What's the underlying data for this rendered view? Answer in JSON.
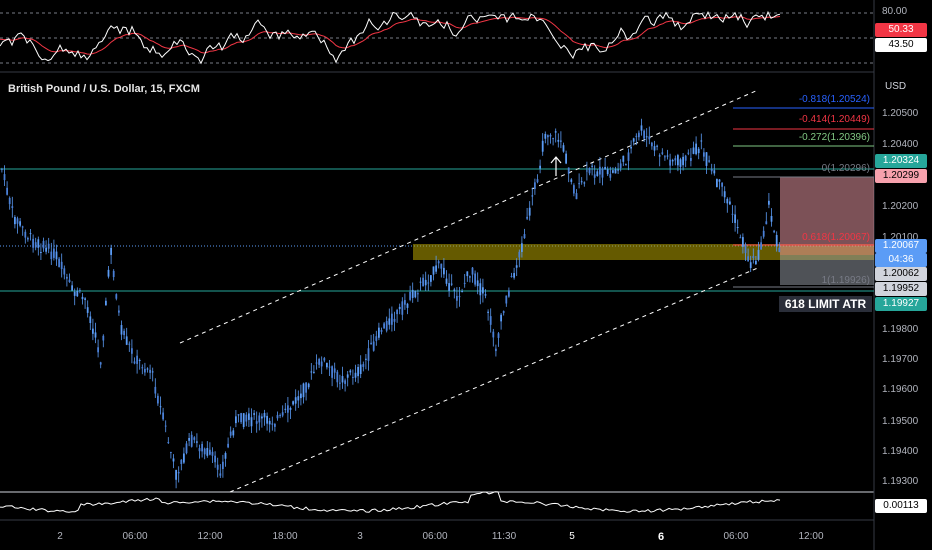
{
  "chart": {
    "title": "British Pound / U.S. Dollar, 15, FXCM",
    "currency": "USD",
    "annotation": "618 LIMIT ATR"
  },
  "oscillator": {
    "ticks": [
      "80.00"
    ],
    "value_tags": [
      {
        "text": "50.33",
        "color": "#f23645",
        "text_color": "#ffffff"
      },
      {
        "text": "43.50",
        "color": "#ffffff",
        "text_color": "#000000"
      }
    ]
  },
  "price_axis": {
    "ticks": [
      "1.20500",
      "1.20400",
      "1.20200",
      "1.20100",
      "1.19800",
      "1.19700",
      "1.19600",
      "1.19500",
      "1.19400",
      "1.19300"
    ]
  },
  "price_tags": [
    {
      "text": "1.20324",
      "bg": "#26a69a",
      "fg": "#ffffff"
    },
    {
      "text": "1.20299",
      "bg": "#f7a1ad",
      "fg": "#000000"
    },
    {
      "text": "1.20067",
      "bg": "#5b9cf6",
      "fg": "#ffffff"
    },
    {
      "text": "04:36",
      "bg": "#5b9cf6",
      "fg": "#ffffff"
    },
    {
      "text": "1.20062",
      "bg": "#d1d4dc",
      "fg": "#000000"
    },
    {
      "text": "1.19952",
      "bg": "#d1d4dc",
      "fg": "#000000"
    },
    {
      "text": "1.19927",
      "bg": "#26a69a",
      "fg": "#ffffff"
    }
  ],
  "fib_levels": [
    {
      "text": "-0.818(1.20524)",
      "color": "#2962ff"
    },
    {
      "text": "-0.414(1.20449)",
      "color": "#f23645"
    },
    {
      "text": "-0.272(1.20396)",
      "color": "#81c784"
    },
    {
      "text": "0(1.20296)",
      "color": "#787b86"
    },
    {
      "text": "0.618(1.20067)",
      "color": "#f23645"
    },
    {
      "text": "1(1.19926)",
      "color": "#787b86"
    }
  ],
  "atr_panel": {
    "value_tag": "0.00113"
  },
  "time_axis": {
    "ticks": [
      {
        "text": "2",
        "bold": false
      },
      {
        "text": "06:00",
        "bold": false
      },
      {
        "text": "12:00",
        "bold": false
      },
      {
        "text": "18:00",
        "bold": false
      },
      {
        "text": "3",
        "bold": false
      },
      {
        "text": "06:00",
        "bold": false
      },
      {
        "text": "11:30",
        "bold": false
      },
      {
        "text": "5",
        "bold": false
      },
      {
        "text": "6",
        "bold": true
      },
      {
        "text": "06:00",
        "bold": false
      },
      {
        "text": "12:00",
        "bold": false
      }
    ]
  },
  "colors": {
    "candle_up": "#5b9cf6",
    "candle_down": "#5b9cf6",
    "channel": "#ffffff",
    "horizontal_lines": "#26a69a",
    "zone": "#b8a400",
    "short_box": "#f7a1ad",
    "rsi_line": "#ffffff",
    "rsi_ma": "#f23645"
  },
  "chart_data": {
    "type": "candlestick",
    "symbol": "British Pound / U.S. Dollar",
    "timeframe": "15",
    "source": "FXCM",
    "current_price": 1.20067,
    "price_range": [
      1.1926,
      1.2062
    ],
    "horizontal_levels": [
      1.20296,
      1.19927
    ],
    "fib_levels": [
      -0.818,
      -0.414,
      -0.272,
      0,
      0.618,
      1
    ],
    "oscillator_values": [
      50.33,
      43.5
    ],
    "atr_value": 0.00113
  }
}
